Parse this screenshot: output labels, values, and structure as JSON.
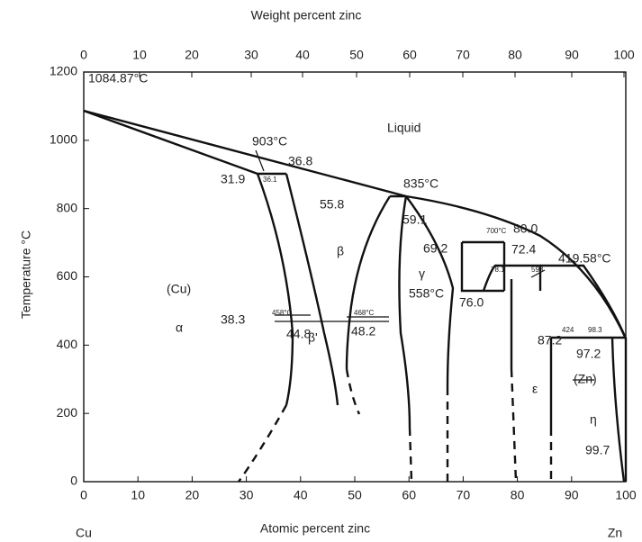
{
  "axes": {
    "top_title": "Weight percent zinc",
    "bottom_title": "Atomic percent zinc",
    "y_title": "Temperature °C",
    "top_ticks": [
      0,
      10,
      20,
      30,
      40,
      50,
      60,
      70,
      80,
      90,
      100
    ],
    "bottom_ticks": [
      0,
      10,
      20,
      30,
      40,
      50,
      60,
      70,
      80,
      90,
      100
    ],
    "y_ticks": [
      0,
      200,
      400,
      600,
      800,
      1000,
      1200
    ],
    "left_end": "Cu",
    "right_end": "Zn"
  },
  "annotations": [
    "1084.87°C",
    "903°C",
    "36.8",
    "31.9",
    "36.1",
    "Liquid",
    "835°C",
    "55.8",
    "59.1",
    "80.0",
    "700°C",
    "69.2",
    "72.4",
    "419.58°C",
    "β",
    "γ",
    "558°C",
    "(Cu)",
    "78.1",
    "598",
    "76.0",
    "38.3",
    "458°C",
    "468°C",
    "α",
    "44.8",
    "β'",
    "48.2",
    "424",
    "98.3",
    "87.2",
    "97.2",
    "(Zn)",
    "ε",
    "η",
    "99.7"
  ]
}
